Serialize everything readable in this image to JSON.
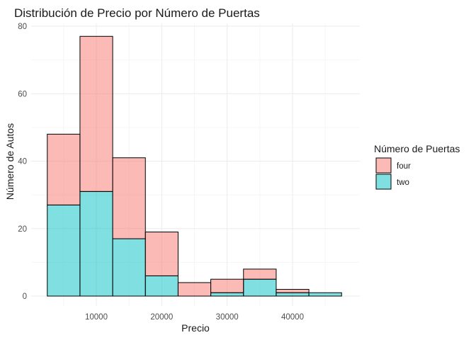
{
  "chart_data": {
    "type": "bar",
    "stacked": true,
    "title": "Distribución de Precio por Número de Puertas",
    "xlabel": "Precio",
    "ylabel": "Número de Autos",
    "bin_edges": [
      2500,
      7500,
      12500,
      17500,
      22500,
      27500,
      32500,
      37500,
      42500,
      47500
    ],
    "xlim": [
      0,
      50000
    ],
    "ylim": [
      0,
      80
    ],
    "x_ticks": [
      10000,
      20000,
      30000,
      40000
    ],
    "x_tick_labels": [
      "10000",
      "20000",
      "30000",
      "40000"
    ],
    "y_ticks": [
      0,
      20,
      40,
      60,
      80
    ],
    "y_tick_labels": [
      "0",
      "20",
      "40",
      "60",
      "80"
    ],
    "series": [
      {
        "name": "two",
        "color": "#00BFC4",
        "values": [
          27,
          31,
          17,
          6,
          0,
          1,
          5,
          1,
          1
        ]
      },
      {
        "name": "four",
        "color": "#F8766D",
        "values": [
          21,
          46,
          24,
          13,
          4,
          4,
          3,
          1,
          0
        ]
      }
    ],
    "legend": {
      "title": "Número de Puertas",
      "position": "right",
      "entries": [
        "four",
        "two"
      ]
    },
    "grid": true,
    "fill_opacity": 0.5,
    "bar_outline": "#000000"
  }
}
